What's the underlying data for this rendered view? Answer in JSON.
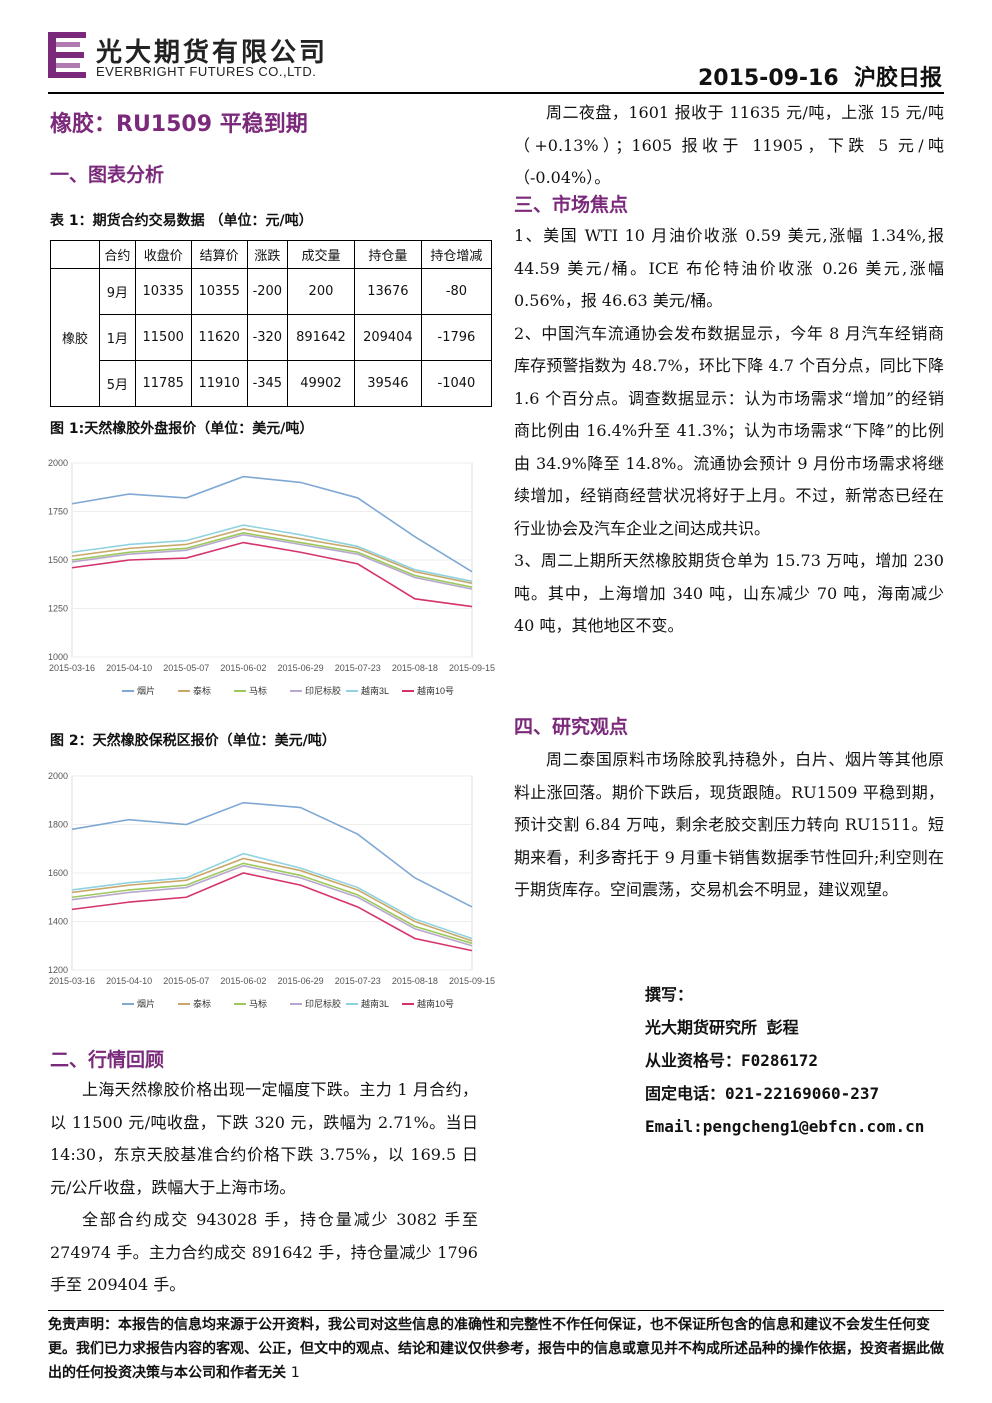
{
  "header": {
    "company_cn": "光大期货有限公司",
    "company_en": "EVERBRIGHT FUTURES CO.,LTD.",
    "date_title": "2015-09-16  沪胶日报"
  },
  "main_title": "橡胶：RU1509 平稳到期",
  "sections": {
    "s1": "一、图表分析",
    "s2": "二、行情回顾",
    "s3": "三、市场焦点",
    "s4": "四、研究观点"
  },
  "table": {
    "caption": "表 1：期货合约交易数据 （单位：元/吨）",
    "headers": [
      "合约",
      "收盘价",
      "结算价",
      "涨跌",
      "成交量",
      "持仓量",
      "持仓增减"
    ],
    "product": "橡胶",
    "rows": [
      [
        "9月",
        "10335",
        "10355",
        "-200",
        "200",
        "13676",
        "-80"
      ],
      [
        "1月",
        "11500",
        "11620",
        "-320",
        "891642",
        "209404",
        "-1796"
      ],
      [
        "5月",
        "11785",
        "11910",
        "-345",
        "49902",
        "39546",
        "-1040"
      ]
    ]
  },
  "chart1": {
    "caption": "图 1:天然橡胶外盘报价（单位：美元/吨）",
    "chart_data": {
      "type": "line",
      "x": [
        "2015-03-16",
        "2015-04-10",
        "2015-05-07",
        "2015-06-02",
        "2015-06-29",
        "2015-07-23",
        "2015-08-18",
        "2015-09-15"
      ],
      "ylim": [
        1000,
        2000
      ],
      "yticks": [
        "2000",
        "1750",
        "1500",
        "1250",
        "1000"
      ],
      "legend": "bottom",
      "series": [
        {
          "name": "烟片",
          "color": "#7fa8d4",
          "values": [
            1790,
            1840,
            1820,
            1930,
            1900,
            1820,
            1620,
            1440
          ]
        },
        {
          "name": "泰标",
          "color": "#c9a86a",
          "values": [
            1520,
            1560,
            1580,
            1660,
            1610,
            1560,
            1440,
            1380
          ]
        },
        {
          "name": "马标",
          "color": "#9bc95a",
          "values": [
            1500,
            1540,
            1560,
            1640,
            1590,
            1540,
            1420,
            1360
          ]
        },
        {
          "name": "印尼标胶",
          "color": "#b8a8d0",
          "values": [
            1490,
            1530,
            1550,
            1630,
            1580,
            1530,
            1410,
            1350
          ]
        },
        {
          "name": "越南3L",
          "color": "#8fd3e0",
          "values": [
            1540,
            1580,
            1600,
            1680,
            1630,
            1570,
            1450,
            1390
          ]
        },
        {
          "name": "越南10号",
          "color": "#d6336e",
          "values": [
            1460,
            1500,
            1510,
            1590,
            1540,
            1480,
            1300,
            1260
          ]
        }
      ]
    }
  },
  "chart2": {
    "caption": "图 2：天然橡胶保税区报价（单位：美元/吨）",
    "chart_data": {
      "type": "line",
      "x": [
        "2015-03-16",
        "2015-04-10",
        "2015-05-07",
        "2015-06-02",
        "2015-06-29",
        "2015-07-23",
        "2015-08-18",
        "2015-09-15"
      ],
      "ylim": [
        1200,
        2000
      ],
      "yticks": [
        "2000",
        "1800",
        "1600",
        "1400",
        "1200"
      ],
      "legend": "bottom",
      "series": [
        {
          "name": "烟片",
          "color": "#7fa8d4",
          "values": [
            1780,
            1820,
            1800,
            1890,
            1870,
            1760,
            1580,
            1460
          ]
        },
        {
          "name": "泰标",
          "color": "#c9a86a",
          "values": [
            1520,
            1550,
            1570,
            1660,
            1610,
            1530,
            1400,
            1320
          ]
        },
        {
          "name": "马标",
          "color": "#9bc95a",
          "values": [
            1500,
            1530,
            1550,
            1640,
            1590,
            1510,
            1380,
            1310
          ]
        },
        {
          "name": "印尼标胶",
          "color": "#b8a8d0",
          "values": [
            1490,
            1520,
            1540,
            1630,
            1580,
            1500,
            1370,
            1300
          ]
        },
        {
          "name": "越南3L",
          "color": "#8fd3e0",
          "values": [
            1530,
            1560,
            1580,
            1680,
            1620,
            1540,
            1410,
            1330
          ]
        },
        {
          "name": "越南10号",
          "color": "#d6336e",
          "values": [
            1450,
            1480,
            1500,
            1600,
            1550,
            1460,
            1330,
            1280
          ]
        }
      ]
    }
  },
  "review": {
    "p1": "上海天然橡胶价格出现一定幅度下跌。主力 1 月合约，以 11500 元/吨收盘，下跌 320 元，跌幅为 2.71%。当日 14:30，东京天胶基准合约价格下跌 3.75%，以 169.5 日元/公斤收盘，跌幅大于上海市场。",
    "p2": "全部合约成交 943028 手，持仓量减少 3082 手至 274974 手。主力合约成交 891642 手，持仓量减少 1796 手至 209404 手。"
  },
  "night": "周二夜盘，1601 报收于 11635 元/吨，上涨 15 元/吨（+0.13%）；1605 报收于 11905，下跌 5 元/吨（-0.04%）。",
  "focus": [
    "1、美国 WTI 10 月油价收涨 0.59 美元,涨幅 1.34%,报 44.59 美元/桶。ICE 布伦特油价收涨 0.26 美元,涨幅 0.56%，报 46.63 美元/桶。",
    "2、中国汽车流通协会发布数据显示，今年 8 月汽车经销商库存预警指数为 48.7%，环比下降 4.7 个百分点，同比下降 1.6 个百分点。调查数据显示：认为市场需求“增加”的经销商比例由 16.4%升至 41.3%；认为市场需求“下降”的比例由 34.9%降至 14.8%。流通协会预计 9 月份市场需求将继续增加，经销商经营状况将好于上月。不过，新常态已经在行业协会及汽车企业之间达成共识。",
    "3、周二上期所天然橡胶期货仓单为 15.73 万吨，增加 230 吨。其中，上海增加 340 吨，山东减少 70 吨，海南减少 40 吨，其他地区不变。"
  ],
  "opinion": "周二泰国原料市场除胶乳持稳外，白片、烟片等其他原料止涨回落。期价下跌后，现货跟随。RU1509 平稳到期，预计交割 6.84 万吨，剩余老胶交割压力转向 RU1511。短期来看，利多寄托于 9 月重卡销售数据季节性回升;利空则在于期货库存。空间震荡，交易机会不明显，建议观望。",
  "contact": {
    "label": "撰写：",
    "author": "光大期货研究所 彭程",
    "license": "从业资格号：F0286172",
    "phone": "固定电话：021-22169060-237",
    "email": "Email:pengcheng1@ebfcn.com.cn"
  },
  "disclaimer": "免责声明：本报告的信息均来源于公开资料，我公司对这些信息的准确性和完整性不作任何保证，也不保证所包含的信息和建议不会发生任何变更。我们已力求报告内容的客观、公正，但文中的观点、结论和建议仅供参考，报告中的信息或意见并不构成所述品种的操作依据，投资者据此做出的任何投资决策与本公司和作者无关",
  "page_number": "1"
}
